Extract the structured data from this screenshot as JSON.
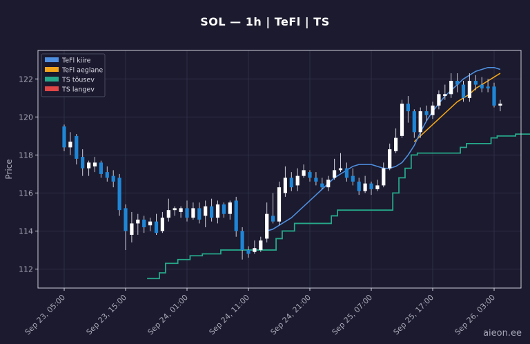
{
  "watermark": "aieon.ee",
  "chart_data": {
    "type": "candlestick",
    "title": "SOL — 1h  |  TeFl  |  TS",
    "ylabel": "Price",
    "xlabel": "",
    "ylim": [
      111,
      123.5
    ],
    "yticks": [
      112,
      114,
      116,
      118,
      120,
      122
    ],
    "grid": true,
    "legend_position": "top-left",
    "x_ticks": [
      {
        "index": 0,
        "label": "Sep 23, 05:00"
      },
      {
        "index": 10,
        "label": "Sep 23, 15:00"
      },
      {
        "index": 20,
        "label": "Sep 24, 01:00"
      },
      {
        "index": 30,
        "label": "Sep 24, 11:00"
      },
      {
        "index": 40,
        "label": "Sep 24, 21:00"
      },
      {
        "index": 50,
        "label": "Sep 25, 07:00"
      },
      {
        "index": 60,
        "label": "Sep 25, 17:00"
      },
      {
        "index": 70,
        "label": "Sep 26, 03:00"
      }
    ],
    "colors": {
      "up": "#ffffff",
      "down": "#1f86d6",
      "wick": "#cfcfdc",
      "fast": "#4f8fe0",
      "slow": "#f2a51a",
      "ts_up": "#26a88a",
      "ts_down": "#e04646",
      "grid": "#2e2e48",
      "axis": "#cfcfdc"
    },
    "legend": [
      {
        "label": "TeFl kiire",
        "color": "#4f8fe0"
      },
      {
        "label": "TeFl aeglane",
        "color": "#f2a51a"
      },
      {
        "label": "TS tõusev",
        "color": "#26a88a"
      },
      {
        "label": "TS langev",
        "color": "#e04646"
      }
    ],
    "candles": [
      [
        119.5,
        118.4,
        119.6,
        118.2
      ],
      [
        118.4,
        118.7,
        119.2,
        118.0
      ],
      [
        119.0,
        117.8,
        119.1,
        117.5
      ],
      [
        117.9,
        117.3,
        118.3,
        116.9
      ],
      [
        117.3,
        117.6,
        117.7,
        116.9
      ],
      [
        117.4,
        117.6,
        117.9,
        117.1
      ],
      [
        117.6,
        117.0,
        117.7,
        116.8
      ],
      [
        117.1,
        116.8,
        117.4,
        116.6
      ],
      [
        116.9,
        116.6,
        117.2,
        116.3
      ],
      [
        116.8,
        115.1,
        117.0,
        114.8
      ],
      [
        115.2,
        114.0,
        115.4,
        113.0
      ],
      [
        113.8,
        114.4,
        115.0,
        113.4
      ],
      [
        114.4,
        114.6,
        114.9,
        113.8
      ],
      [
        114.6,
        114.2,
        114.8,
        113.9
      ],
      [
        114.3,
        114.5,
        114.7,
        114.0
      ],
      [
        114.5,
        113.9,
        114.9,
        113.8
      ],
      [
        114.0,
        114.7,
        115.0,
        113.9
      ],
      [
        114.7,
        115.1,
        115.7,
        114.5
      ],
      [
        115.1,
        115.2,
        115.3,
        114.8
      ],
      [
        115.0,
        115.2,
        115.3,
        114.7
      ],
      [
        115.2,
        114.7,
        115.6,
        114.5
      ],
      [
        114.7,
        115.2,
        115.5,
        114.6
      ],
      [
        115.2,
        114.6,
        115.5,
        114.4
      ],
      [
        114.8,
        115.3,
        115.6,
        114.2
      ],
      [
        115.3,
        114.7,
        115.7,
        114.5
      ],
      [
        114.7,
        115.4,
        115.6,
        114.4
      ],
      [
        115.4,
        114.9,
        115.5,
        114.7
      ],
      [
        114.9,
        115.5,
        115.6,
        114.6
      ],
      [
        115.6,
        114.0,
        115.8,
        113.7
      ],
      [
        114.0,
        113.0,
        114.2,
        112.5
      ],
      [
        113.0,
        112.8,
        113.2,
        112.6
      ],
      [
        112.9,
        113.1,
        113.5,
        112.8
      ],
      [
        113.0,
        113.5,
        113.7,
        112.9
      ],
      [
        113.6,
        114.9,
        115.5,
        113.4
      ],
      [
        114.8,
        114.5,
        116.0,
        114.4
      ],
      [
        114.5,
        116.3,
        116.6,
        114.3
      ],
      [
        116.0,
        116.8,
        117.4,
        115.8
      ],
      [
        116.8,
        116.3,
        117.1,
        116.1
      ],
      [
        116.4,
        116.9,
        117.3,
        116.1
      ],
      [
        116.9,
        117.2,
        117.5,
        116.8
      ],
      [
        117.1,
        116.8,
        117.2,
        116.6
      ],
      [
        116.8,
        116.6,
        117.1,
        116.4
      ],
      [
        116.5,
        116.3,
        116.8,
        116.2
      ],
      [
        116.3,
        116.7,
        116.9,
        116.1
      ],
      [
        116.8,
        117.2,
        117.8,
        116.7
      ],
      [
        117.2,
        117.3,
        118.1,
        117.1
      ],
      [
        117.3,
        116.8,
        117.6,
        116.6
      ],
      [
        116.9,
        116.6,
        117.3,
        116.4
      ],
      [
        116.6,
        116.1,
        116.8,
        115.9
      ],
      [
        116.1,
        116.5,
        116.9,
        116.0
      ],
      [
        116.5,
        116.2,
        116.6,
        115.9
      ],
      [
        116.2,
        116.4,
        116.7,
        116.1
      ],
      [
        116.4,
        117.3,
        117.6,
        116.3
      ],
      [
        117.3,
        118.3,
        118.6,
        117.2
      ],
      [
        118.2,
        118.9,
        119.4,
        118.1
      ],
      [
        119.0,
        120.7,
        120.9,
        118.9
      ],
      [
        120.7,
        120.3,
        121.1,
        119.7
      ],
      [
        120.3,
        119.2,
        120.4,
        118.9
      ],
      [
        119.2,
        120.3,
        120.5,
        118.9
      ],
      [
        120.3,
        120.1,
        120.6,
        119.8
      ],
      [
        120.1,
        120.6,
        120.8,
        119.9
      ],
      [
        120.6,
        121.2,
        121.4,
        120.4
      ],
      [
        121.1,
        121.2,
        121.7,
        120.9
      ],
      [
        121.2,
        121.9,
        122.3,
        121.0
      ],
      [
        121.9,
        121.7,
        122.3,
        121.3
      ],
      [
        121.7,
        121.0,
        121.9,
        120.8
      ],
      [
        121.0,
        121.9,
        122.3,
        120.8
      ],
      [
        121.9,
        121.7,
        122.2,
        121.4
      ],
      [
        121.7,
        121.5,
        122.1,
        121.3
      ],
      [
        121.6,
        121.5,
        122.0,
        121.3
      ],
      [
        121.6,
        120.6,
        121.8,
        120.5
      ],
      [
        120.6,
        120.7,
        120.9,
        120.3
      ]
    ],
    "fast_line": {
      "start_index": 33,
      "values": [
        114.0,
        114.1,
        114.3,
        114.5,
        114.7,
        115.0,
        115.3,
        115.6,
        115.9,
        116.2,
        116.5,
        116.8,
        117.0,
        117.2,
        117.4,
        117.5,
        117.5,
        117.5,
        117.4,
        117.3,
        117.3,
        117.4,
        117.6,
        118.0,
        118.5,
        119.2,
        119.8,
        120.3,
        120.7,
        121.1,
        121.4,
        121.7,
        122.0,
        122.2,
        122.4,
        122.5,
        122.6,
        122.6,
        122.5
      ]
    },
    "slow_line": {
      "start_index": 57,
      "values": [
        118.7,
        119.0,
        119.3,
        119.6,
        119.9,
        120.2,
        120.5,
        120.8,
        121.0,
        121.2,
        121.5,
        121.7,
        121.9,
        122.1,
        122.3
      ]
    },
    "ts_up": {
      "start_index": 14,
      "values": [
        111.5,
        111.5,
        111.8,
        112.3,
        112.3,
        112.5,
        112.5,
        112.7,
        112.7,
        112.8,
        112.8,
        112.8,
        113.0,
        113.0,
        113.0,
        113.0,
        113.0,
        113.0,
        113.0,
        113.0,
        113.0,
        113.6,
        114.0,
        114.0,
        114.4,
        114.4,
        114.4,
        114.4,
        114.4,
        114.4,
        114.8,
        115.1,
        115.1,
        115.1,
        115.1,
        115.1,
        115.1,
        115.1,
        115.1,
        115.1,
        116.0,
        116.8,
        117.3,
        118.0,
        118.1,
        118.1,
        118.1,
        118.1,
        118.1,
        118.1,
        118.1,
        118.4,
        118.6,
        118.6,
        118.6,
        118.6,
        118.9,
        119.0,
        119.0,
        119.0,
        119.1,
        119.1,
        119.1,
        119.1
      ]
    }
  }
}
